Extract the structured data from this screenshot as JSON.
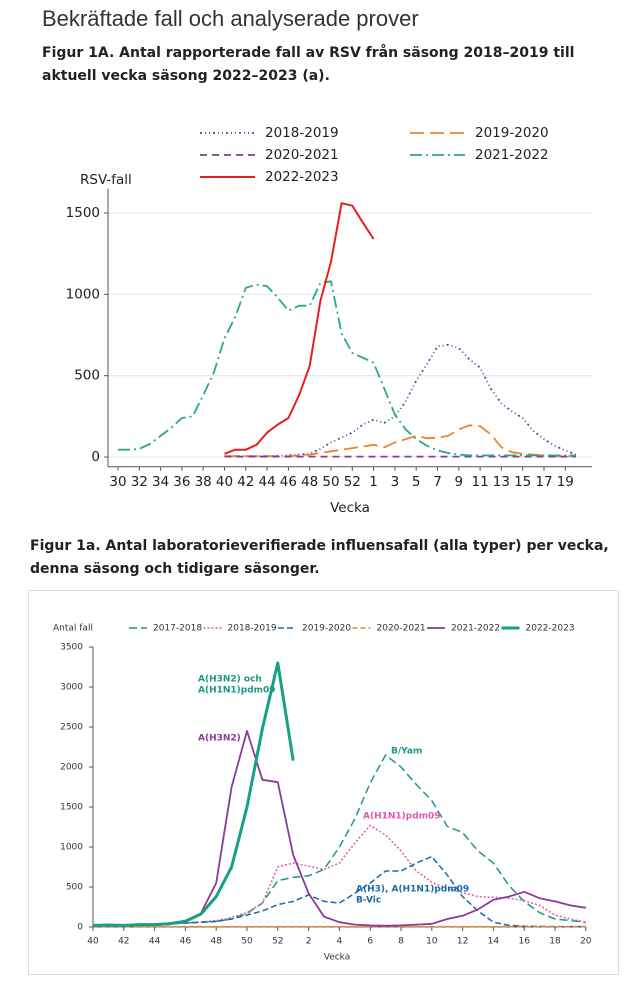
{
  "heading": "Bekräftade fall och analyserade prover",
  "chart_data": [
    {
      "type": "line",
      "title": "Figur 1A. Antal rapporterade fall av RSV från säsong 2018–2019 till aktuell vecka säsong 2022–2023 (a).",
      "ylabel": "RSV-fall",
      "xlabel": "Vecka",
      "categories": [
        "30",
        null,
        "32",
        null,
        "34",
        null,
        "36",
        null,
        "38",
        null,
        "40",
        null,
        "42",
        null,
        "44",
        null,
        "46",
        null,
        "48",
        null,
        "50",
        null,
        "52",
        null,
        "1",
        null,
        "3",
        null,
        "5",
        null,
        "7",
        null,
        "9",
        null,
        "11",
        null,
        "13",
        null,
        "15",
        null,
        "17",
        null,
        "19",
        null
      ],
      "ylim": [
        -60,
        1650
      ],
      "yticks": [
        0,
        500,
        1000,
        1500
      ],
      "grid": true,
      "series": [
        {
          "name": "2018-2019",
          "color": "#4b4f9e",
          "values": [
            null,
            null,
            null,
            null,
            null,
            null,
            null,
            null,
            null,
            null,
            5,
            5,
            5,
            5,
            5,
            8,
            10,
            15,
            20,
            50,
            90,
            120,
            150,
            200,
            230,
            210,
            250,
            340,
            470,
            570,
            680,
            690,
            670,
            600,
            550,
            420,
            330,
            280,
            240,
            160,
            110,
            70,
            40,
            15
          ]
        },
        {
          "name": "2019-2020",
          "color": "#f0822e",
          "values": [
            null,
            null,
            null,
            null,
            null,
            null,
            null,
            null,
            null,
            null,
            5,
            5,
            5,
            5,
            5,
            5,
            5,
            10,
            15,
            25,
            35,
            45,
            55,
            65,
            75,
            60,
            90,
            110,
            130,
            115,
            120,
            130,
            170,
            195,
            190,
            140,
            60,
            30,
            20,
            15,
            10,
            5,
            5,
            5
          ]
        },
        {
          "name": "2020-2021",
          "color": "#7b3f98",
          "values": [
            null,
            null,
            null,
            null,
            null,
            null,
            null,
            null,
            null,
            null,
            3,
            3,
            3,
            3,
            3,
            3,
            3,
            3,
            3,
            3,
            3,
            3,
            3,
            3,
            3,
            3,
            3,
            3,
            3,
            3,
            3,
            3,
            3,
            3,
            3,
            3,
            3,
            3,
            3,
            3,
            3,
            3,
            3,
            3
          ]
        },
        {
          "name": "2021-2022",
          "color": "#2aa985",
          "values": [
            45,
            45,
            50,
            80,
            130,
            180,
            240,
            250,
            380,
            520,
            730,
            860,
            1040,
            1060,
            1050,
            980,
            900,
            930,
            930,
            1070,
            1080,
            760,
            640,
            610,
            580,
            420,
            260,
            170,
            110,
            70,
            40,
            25,
            15,
            10,
            10,
            10,
            10,
            10,
            10,
            10,
            10,
            10,
            10,
            10
          ]
        },
        {
          "name": "2022-2023",
          "color": "#e3221f",
          "values": [
            null,
            null,
            null,
            null,
            null,
            null,
            null,
            null,
            null,
            null,
            20,
            45,
            45,
            75,
            150,
            200,
            240,
            380,
            560,
            960,
            1200,
            1560,
            1545,
            1440,
            1340,
            null,
            null,
            null,
            null,
            null,
            null,
            null,
            null,
            null,
            null,
            null,
            null,
            null,
            null,
            null,
            null,
            null,
            null,
            null
          ]
        }
      ]
    },
    {
      "type": "line",
      "title": "Figur 1a. Antal laboratorieverifierade influensafall (alla typer) per vecka, denna säsong och tidigare säsonger.",
      "ylabel": "Antal fall",
      "xlabel": "Vecka",
      "categories": [
        "40",
        null,
        "42",
        null,
        "44",
        null,
        "46",
        null,
        "48",
        null,
        "50",
        null,
        "52",
        null,
        "2",
        null,
        "4",
        null,
        "6",
        null,
        "8",
        null,
        "10",
        null,
        "12",
        null,
        "14",
        null,
        "16",
        null,
        "18",
        null,
        "20"
      ],
      "ylim": [
        0,
        3500
      ],
      "yticks": [
        0,
        500,
        1000,
        1500,
        2000,
        2500,
        3000,
        3500
      ],
      "grid": false,
      "series": [
        {
          "name": "2017-2018",
          "color": "#1a9a80",
          "values": [
            10,
            15,
            20,
            25,
            30,
            40,
            50,
            60,
            70,
            100,
            170,
            300,
            580,
            620,
            640,
            720,
            1000,
            1350,
            1800,
            2150,
            2000,
            1780,
            1580,
            1260,
            1180,
            950,
            800,
            520,
            320,
            180,
            100,
            80,
            60
          ]
        },
        {
          "name": "2018-2019",
          "color": "#e05aa8",
          "values": [
            10,
            15,
            20,
            25,
            30,
            40,
            50,
            60,
            80,
            120,
            180,
            300,
            750,
            800,
            760,
            720,
            800,
            1050,
            1270,
            1150,
            950,
            700,
            560,
            480,
            430,
            380,
            370,
            360,
            330,
            270,
            150,
            100,
            60
          ]
        },
        {
          "name": "2019-2020",
          "color": "#1a6aaa",
          "values": [
            10,
            15,
            20,
            25,
            30,
            40,
            50,
            60,
            70,
            100,
            150,
            200,
            280,
            320,
            400,
            320,
            300,
            420,
            550,
            700,
            700,
            800,
            880,
            650,
            380,
            200,
            60,
            20,
            10,
            8,
            5,
            5,
            5
          ]
        },
        {
          "name": "2020-2021",
          "color": "#f08020",
          "values": [
            5,
            5,
            5,
            5,
            5,
            5,
            5,
            5,
            5,
            5,
            5,
            5,
            5,
            5,
            5,
            5,
            5,
            5,
            5,
            5,
            5,
            5,
            5,
            5,
            5,
            5,
            5,
            5,
            5,
            5,
            5,
            5,
            5
          ]
        },
        {
          "name": "2021-2022",
          "color": "#8a3a9a",
          "values": [
            20,
            25,
            20,
            25,
            30,
            50,
            80,
            170,
            550,
            1750,
            2450,
            1840,
            1810,
            900,
            420,
            130,
            60,
            30,
            20,
            15,
            20,
            30,
            40,
            100,
            140,
            220,
            340,
            380,
            440,
            360,
            320,
            270,
            240
          ]
        },
        {
          "name": "2022-2023",
          "color": "#16a085",
          "values": [
            20,
            25,
            20,
            30,
            30,
            40,
            70,
            160,
            380,
            750,
            1500,
            2480,
            3300,
            2080,
            null,
            null,
            null,
            null,
            null,
            null,
            null,
            null,
            null,
            null,
            null,
            null,
            null,
            null,
            null,
            null,
            null,
            null,
            null
          ]
        }
      ],
      "annotations": [
        {
          "text": [
            "A(H3N2) och",
            "A(H1N1)pdm09"
          ],
          "color": "#1a9a80"
        },
        {
          "text": [
            "A(H3N2)"
          ],
          "color": "#8a3a9a"
        },
        {
          "text": [
            "B/Yam"
          ],
          "color": "#1a9a80"
        },
        {
          "text": [
            "A(H1N1)pdm09"
          ],
          "color": "#e05aa8"
        },
        {
          "text": [
            "A(H3), A(H1N1)pdm09",
            "B-Vic"
          ],
          "color": "#1a6aaa"
        }
      ]
    }
  ]
}
